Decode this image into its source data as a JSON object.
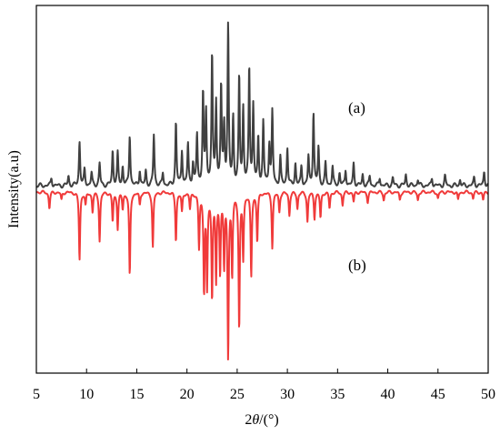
{
  "chart_data": {
    "type": "line",
    "title": "",
    "xlabel_prefix": "2",
    "xlabel_var": "θ",
    "xlabel_suffix": "/(°)",
    "ylabel": "Intensity(a.u)",
    "xlim": [
      5,
      50
    ],
    "xticks": [
      "5",
      "10",
      "15",
      "20",
      "25",
      "30",
      "35",
      "40",
      "45",
      "50"
    ],
    "yticks": [],
    "grid": false,
    "legend": "none",
    "annotations": [
      "(a)",
      "(b)"
    ],
    "colors": {
      "a": "#404040",
      "b": "#f03a3a"
    },
    "series": [
      {
        "label": "(a)",
        "orientation": "up",
        "baseline": 0,
        "peaks": [
          [
            6.5,
            0.05
          ],
          [
            8.2,
            0.06
          ],
          [
            9.3,
            0.28
          ],
          [
            9.8,
            0.1
          ],
          [
            10.5,
            0.08
          ],
          [
            11.3,
            0.14
          ],
          [
            12.6,
            0.22
          ],
          [
            13.1,
            0.2
          ],
          [
            13.6,
            0.12
          ],
          [
            14.3,
            0.32
          ],
          [
            15.3,
            0.1
          ],
          [
            15.9,
            0.09
          ],
          [
            16.7,
            0.32
          ],
          [
            17.6,
            0.08
          ],
          [
            18.9,
            0.4
          ],
          [
            19.5,
            0.22
          ],
          [
            20.1,
            0.26
          ],
          [
            20.6,
            0.14
          ],
          [
            21.0,
            0.32
          ],
          [
            21.6,
            0.58
          ],
          [
            21.9,
            0.46
          ],
          [
            22.5,
            0.82
          ],
          [
            22.9,
            0.52
          ],
          [
            23.4,
            0.62
          ],
          [
            23.7,
            0.36
          ],
          [
            24.1,
            1.0
          ],
          [
            24.6,
            0.42
          ],
          [
            25.2,
            0.68
          ],
          [
            25.6,
            0.48
          ],
          [
            26.2,
            0.74
          ],
          [
            26.6,
            0.5
          ],
          [
            27.1,
            0.3
          ],
          [
            27.6,
            0.4
          ],
          [
            28.2,
            0.26
          ],
          [
            28.5,
            0.46
          ],
          [
            29.3,
            0.18
          ],
          [
            30.0,
            0.24
          ],
          [
            30.8,
            0.14
          ],
          [
            31.4,
            0.12
          ],
          [
            32.1,
            0.18
          ],
          [
            32.6,
            0.46
          ],
          [
            33.1,
            0.24
          ],
          [
            33.8,
            0.14
          ],
          [
            34.5,
            0.12
          ],
          [
            35.2,
            0.08
          ],
          [
            35.8,
            0.1
          ],
          [
            36.6,
            0.14
          ],
          [
            37.5,
            0.07
          ],
          [
            38.2,
            0.06
          ],
          [
            39.2,
            0.05
          ],
          [
            40.5,
            0.05
          ],
          [
            41.8,
            0.07
          ],
          [
            43.0,
            0.04
          ],
          [
            44.4,
            0.05
          ],
          [
            45.7,
            0.06
          ],
          [
            47.2,
            0.04
          ],
          [
            48.6,
            0.05
          ],
          [
            49.6,
            0.09
          ]
        ]
      },
      {
        "label": "(b)",
        "orientation": "down",
        "baseline": 0,
        "peaks": [
          [
            6.3,
            0.1
          ],
          [
            7.5,
            0.05
          ],
          [
            9.3,
            0.42
          ],
          [
            9.9,
            0.08
          ],
          [
            10.6,
            0.12
          ],
          [
            11.3,
            0.3
          ],
          [
            12.6,
            0.18
          ],
          [
            13.1,
            0.22
          ],
          [
            13.6,
            0.1
          ],
          [
            14.3,
            0.52
          ],
          [
            15.3,
            0.08
          ],
          [
            16.6,
            0.34
          ],
          [
            18.9,
            0.3
          ],
          [
            19.5,
            0.12
          ],
          [
            20.3,
            0.1
          ],
          [
            21.2,
            0.34
          ],
          [
            21.7,
            0.6
          ],
          [
            22.0,
            0.58
          ],
          [
            22.5,
            0.64
          ],
          [
            22.9,
            0.54
          ],
          [
            23.3,
            0.48
          ],
          [
            23.7,
            0.44
          ],
          [
            24.1,
            1.0
          ],
          [
            24.5,
            0.5
          ],
          [
            25.2,
            0.84
          ],
          [
            25.6,
            0.4
          ],
          [
            26.4,
            0.52
          ],
          [
            27.0,
            0.3
          ],
          [
            28.5,
            0.34
          ],
          [
            29.2,
            0.12
          ],
          [
            30.2,
            0.14
          ],
          [
            31.0,
            0.1
          ],
          [
            32.0,
            0.18
          ],
          [
            32.7,
            0.16
          ],
          [
            33.3,
            0.16
          ],
          [
            34.2,
            0.1
          ],
          [
            35.5,
            0.08
          ],
          [
            36.6,
            0.06
          ],
          [
            38.0,
            0.06
          ],
          [
            39.6,
            0.05
          ],
          [
            41.2,
            0.05
          ],
          [
            43.0,
            0.05
          ],
          [
            45.0,
            0.04
          ],
          [
            47.0,
            0.05
          ],
          [
            48.5,
            0.04
          ],
          [
            49.5,
            0.05
          ]
        ]
      }
    ]
  }
}
